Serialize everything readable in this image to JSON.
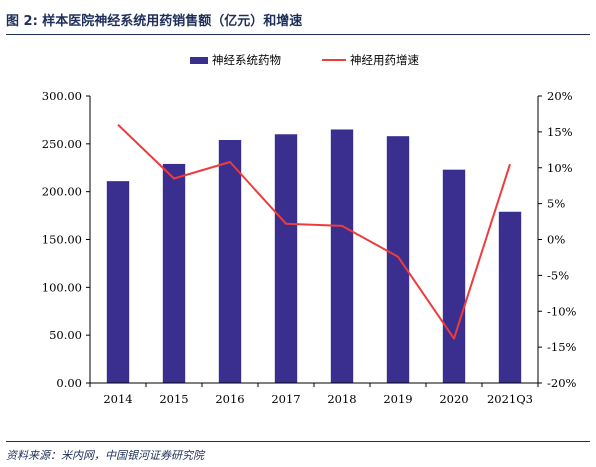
{
  "figure": {
    "title": "图 2: 样本医院神经系统用药销售额（亿元）和增速",
    "source": "资料来源：米内网，中国银河证券研究院"
  },
  "colors": {
    "bar": "#3a2f8f",
    "line": "#ee3b3b",
    "axis": "#000000",
    "title": "#1f2f5a"
  },
  "chart_data": {
    "type": "bar",
    "categories": [
      "2014",
      "2015",
      "2016",
      "2017",
      "2018",
      "2019",
      "2020",
      "2021Q3"
    ],
    "series": [
      {
        "name": "神经系统药物",
        "type": "bar",
        "axis": "left",
        "values": [
          211,
          229,
          254,
          260,
          265,
          258,
          223,
          179
        ]
      },
      {
        "name": "神经用药增速",
        "type": "line",
        "axis": "right",
        "values": [
          16.0,
          8.5,
          10.8,
          2.2,
          1.9,
          -2.4,
          -13.8,
          10.5
        ]
      }
    ],
    "ylim": [
      0,
      300
    ],
    "yticks": [
      0,
      50,
      100,
      150,
      200,
      250,
      300
    ],
    "ytick_labels": [
      "0.00",
      "50.00",
      "100.00",
      "150.00",
      "200.00",
      "250.00",
      "300.00"
    ],
    "y2lim": [
      -20,
      20
    ],
    "y2ticks": [
      -20,
      -15,
      -10,
      -5,
      0,
      5,
      10,
      15,
      20
    ],
    "y2tick_labels": [
      "-20%",
      "-15%",
      "-10%",
      "-5%",
      "0%",
      "5%",
      "10%",
      "15%",
      "20%"
    ],
    "legend_position": "top-center",
    "grid": false
  }
}
